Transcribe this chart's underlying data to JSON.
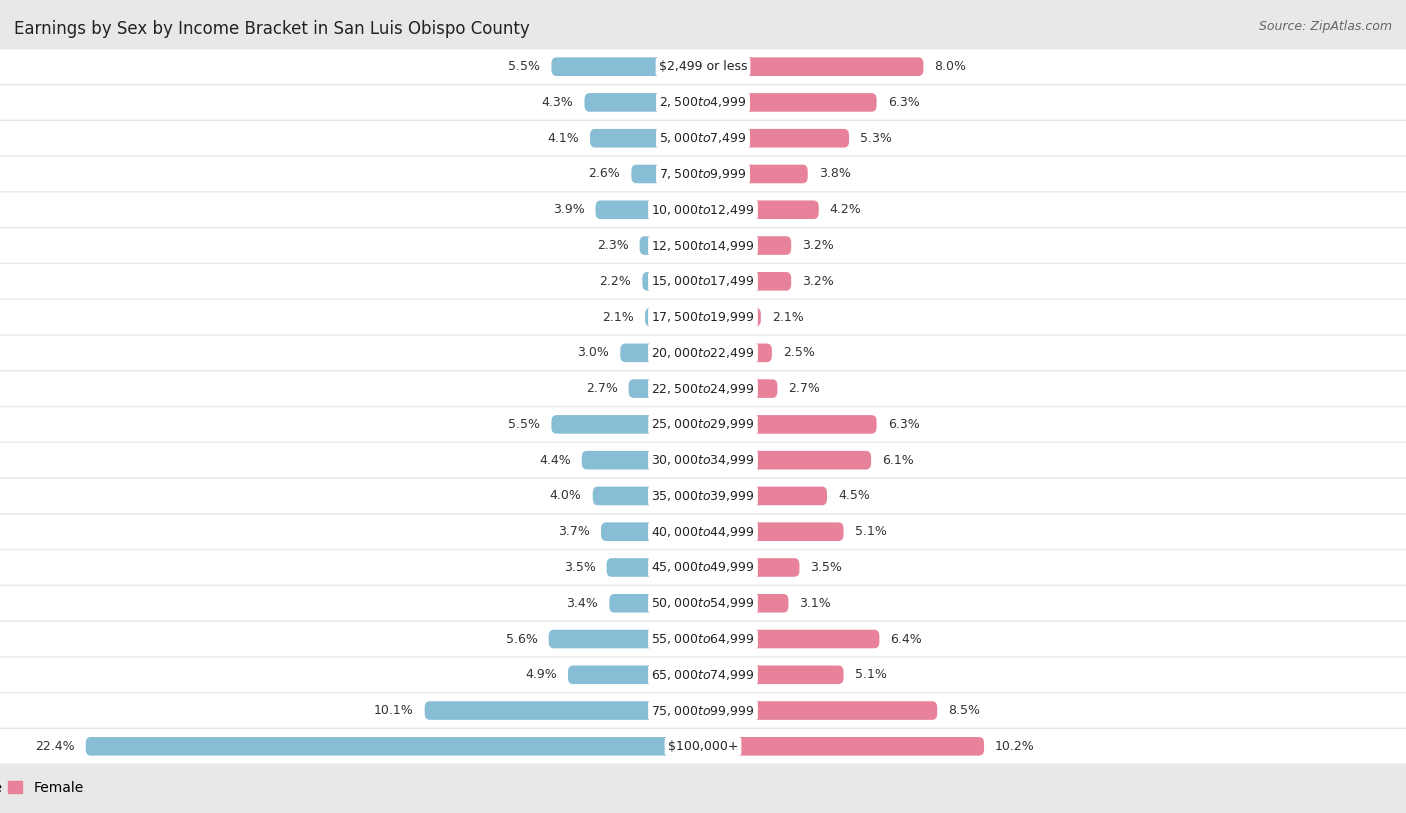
{
  "title": "Earnings by Sex by Income Bracket in San Luis Obispo County",
  "source": "Source: ZipAtlas.com",
  "categories": [
    "$2,499 or less",
    "$2,500 to $4,999",
    "$5,000 to $7,499",
    "$7,500 to $9,999",
    "$10,000 to $12,499",
    "$12,500 to $14,999",
    "$15,000 to $17,499",
    "$17,500 to $19,999",
    "$20,000 to $22,499",
    "$22,500 to $24,999",
    "$25,000 to $29,999",
    "$30,000 to $34,999",
    "$35,000 to $39,999",
    "$40,000 to $44,999",
    "$45,000 to $49,999",
    "$50,000 to $54,999",
    "$55,000 to $64,999",
    "$65,000 to $74,999",
    "$75,000 to $99,999",
    "$100,000+"
  ],
  "male": [
    5.5,
    4.3,
    4.1,
    2.6,
    3.9,
    2.3,
    2.2,
    2.1,
    3.0,
    2.7,
    5.5,
    4.4,
    4.0,
    3.7,
    3.5,
    3.4,
    5.6,
    4.9,
    10.1,
    22.4
  ],
  "female": [
    8.0,
    6.3,
    5.3,
    3.8,
    4.2,
    3.2,
    3.2,
    2.1,
    2.5,
    2.7,
    6.3,
    6.1,
    4.5,
    5.1,
    3.5,
    3.1,
    6.4,
    5.1,
    8.5,
    10.2
  ],
  "male_color": "#88BDD6",
  "female_color": "#E8829A",
  "bg_color": "#e8e8e8",
  "row_light": "#f5f5f5",
  "row_dark": "#ebebeb",
  "axis_limit": 25.0,
  "title_fontsize": 12,
  "source_fontsize": 9,
  "value_fontsize": 9,
  "category_fontsize": 9
}
